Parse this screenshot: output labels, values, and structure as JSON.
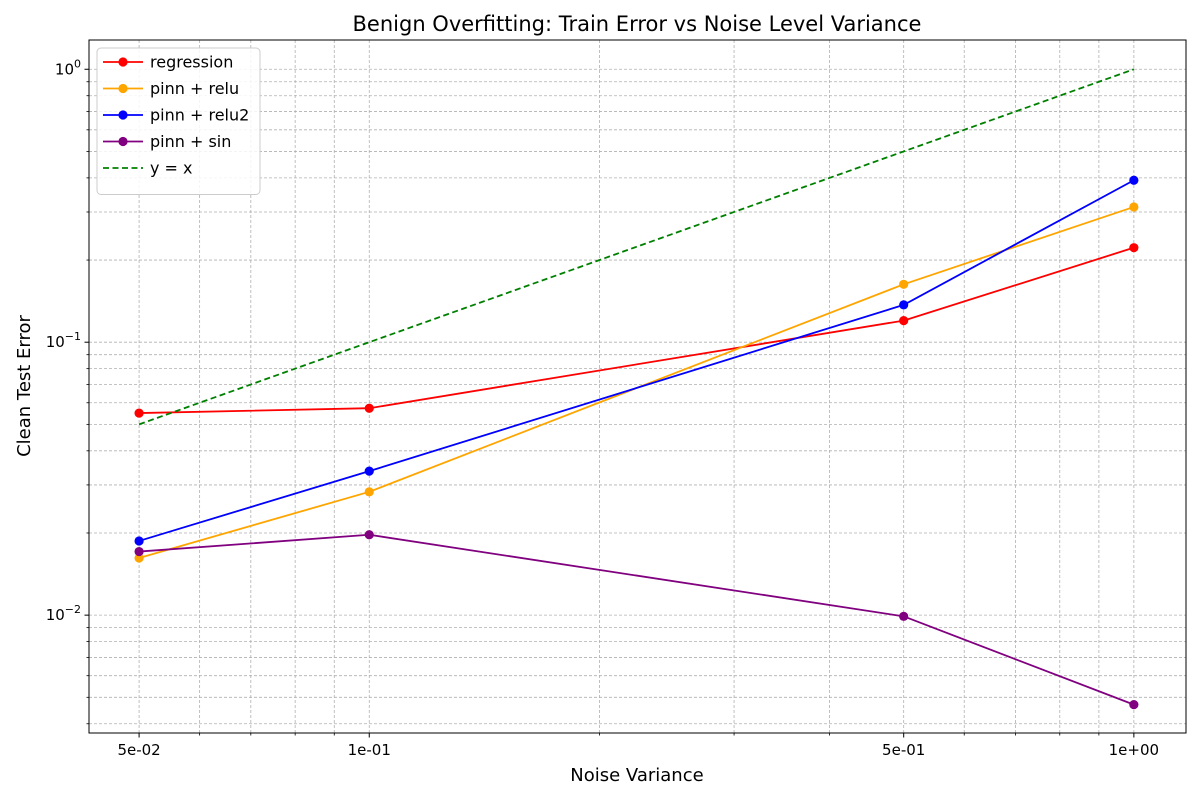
{
  "chart_data": {
    "type": "line",
    "title": "Benign Overfitting: Train Error vs Noise Level Variance",
    "xlabel": "Noise Variance",
    "ylabel": "Clean Test Error",
    "xscale": "log",
    "yscale": "log",
    "xlim": [
      0.043,
      1.17
    ],
    "ylim": [
      0.0037,
      1.28
    ],
    "xticks": [
      0.05,
      0.1,
      0.5,
      1.0
    ],
    "xtick_labels": [
      "5e-02",
      "1e-01",
      "5e-01",
      "1e+00"
    ],
    "yticks": [
      0.01,
      0.1,
      1.0
    ],
    "ytick_labels": [
      {
        "base": "10",
        "exp": "−2"
      },
      {
        "base": "10",
        "exp": "−1"
      },
      {
        "base": "10",
        "exp": "0"
      }
    ],
    "grid": true,
    "legend_position": "upper left",
    "x": [
      0.05,
      0.1,
      0.5,
      1.0
    ],
    "series": [
      {
        "name": "regression",
        "color": "#ff0000",
        "style": "solid",
        "marker": true,
        "values": [
          0.055,
          0.0573,
          0.12,
          0.222
        ]
      },
      {
        "name": "pinn + relu",
        "color": "#ffa500",
        "style": "solid",
        "marker": true,
        "values": [
          0.0162,
          0.0283,
          0.163,
          0.313
        ]
      },
      {
        "name": "pinn + relu2",
        "color": "#0000ff",
        "style": "solid",
        "marker": true,
        "values": [
          0.0187,
          0.0337,
          0.137,
          0.392
        ]
      },
      {
        "name": "pinn + sin",
        "color": "#800080",
        "style": "solid",
        "marker": true,
        "values": [
          0.0171,
          0.0197,
          0.0099,
          0.0047
        ]
      },
      {
        "name": "y = x",
        "color": "#008000",
        "style": "dashed",
        "marker": false,
        "values": [
          0.05,
          0.1,
          0.5,
          1.0
        ]
      }
    ]
  }
}
